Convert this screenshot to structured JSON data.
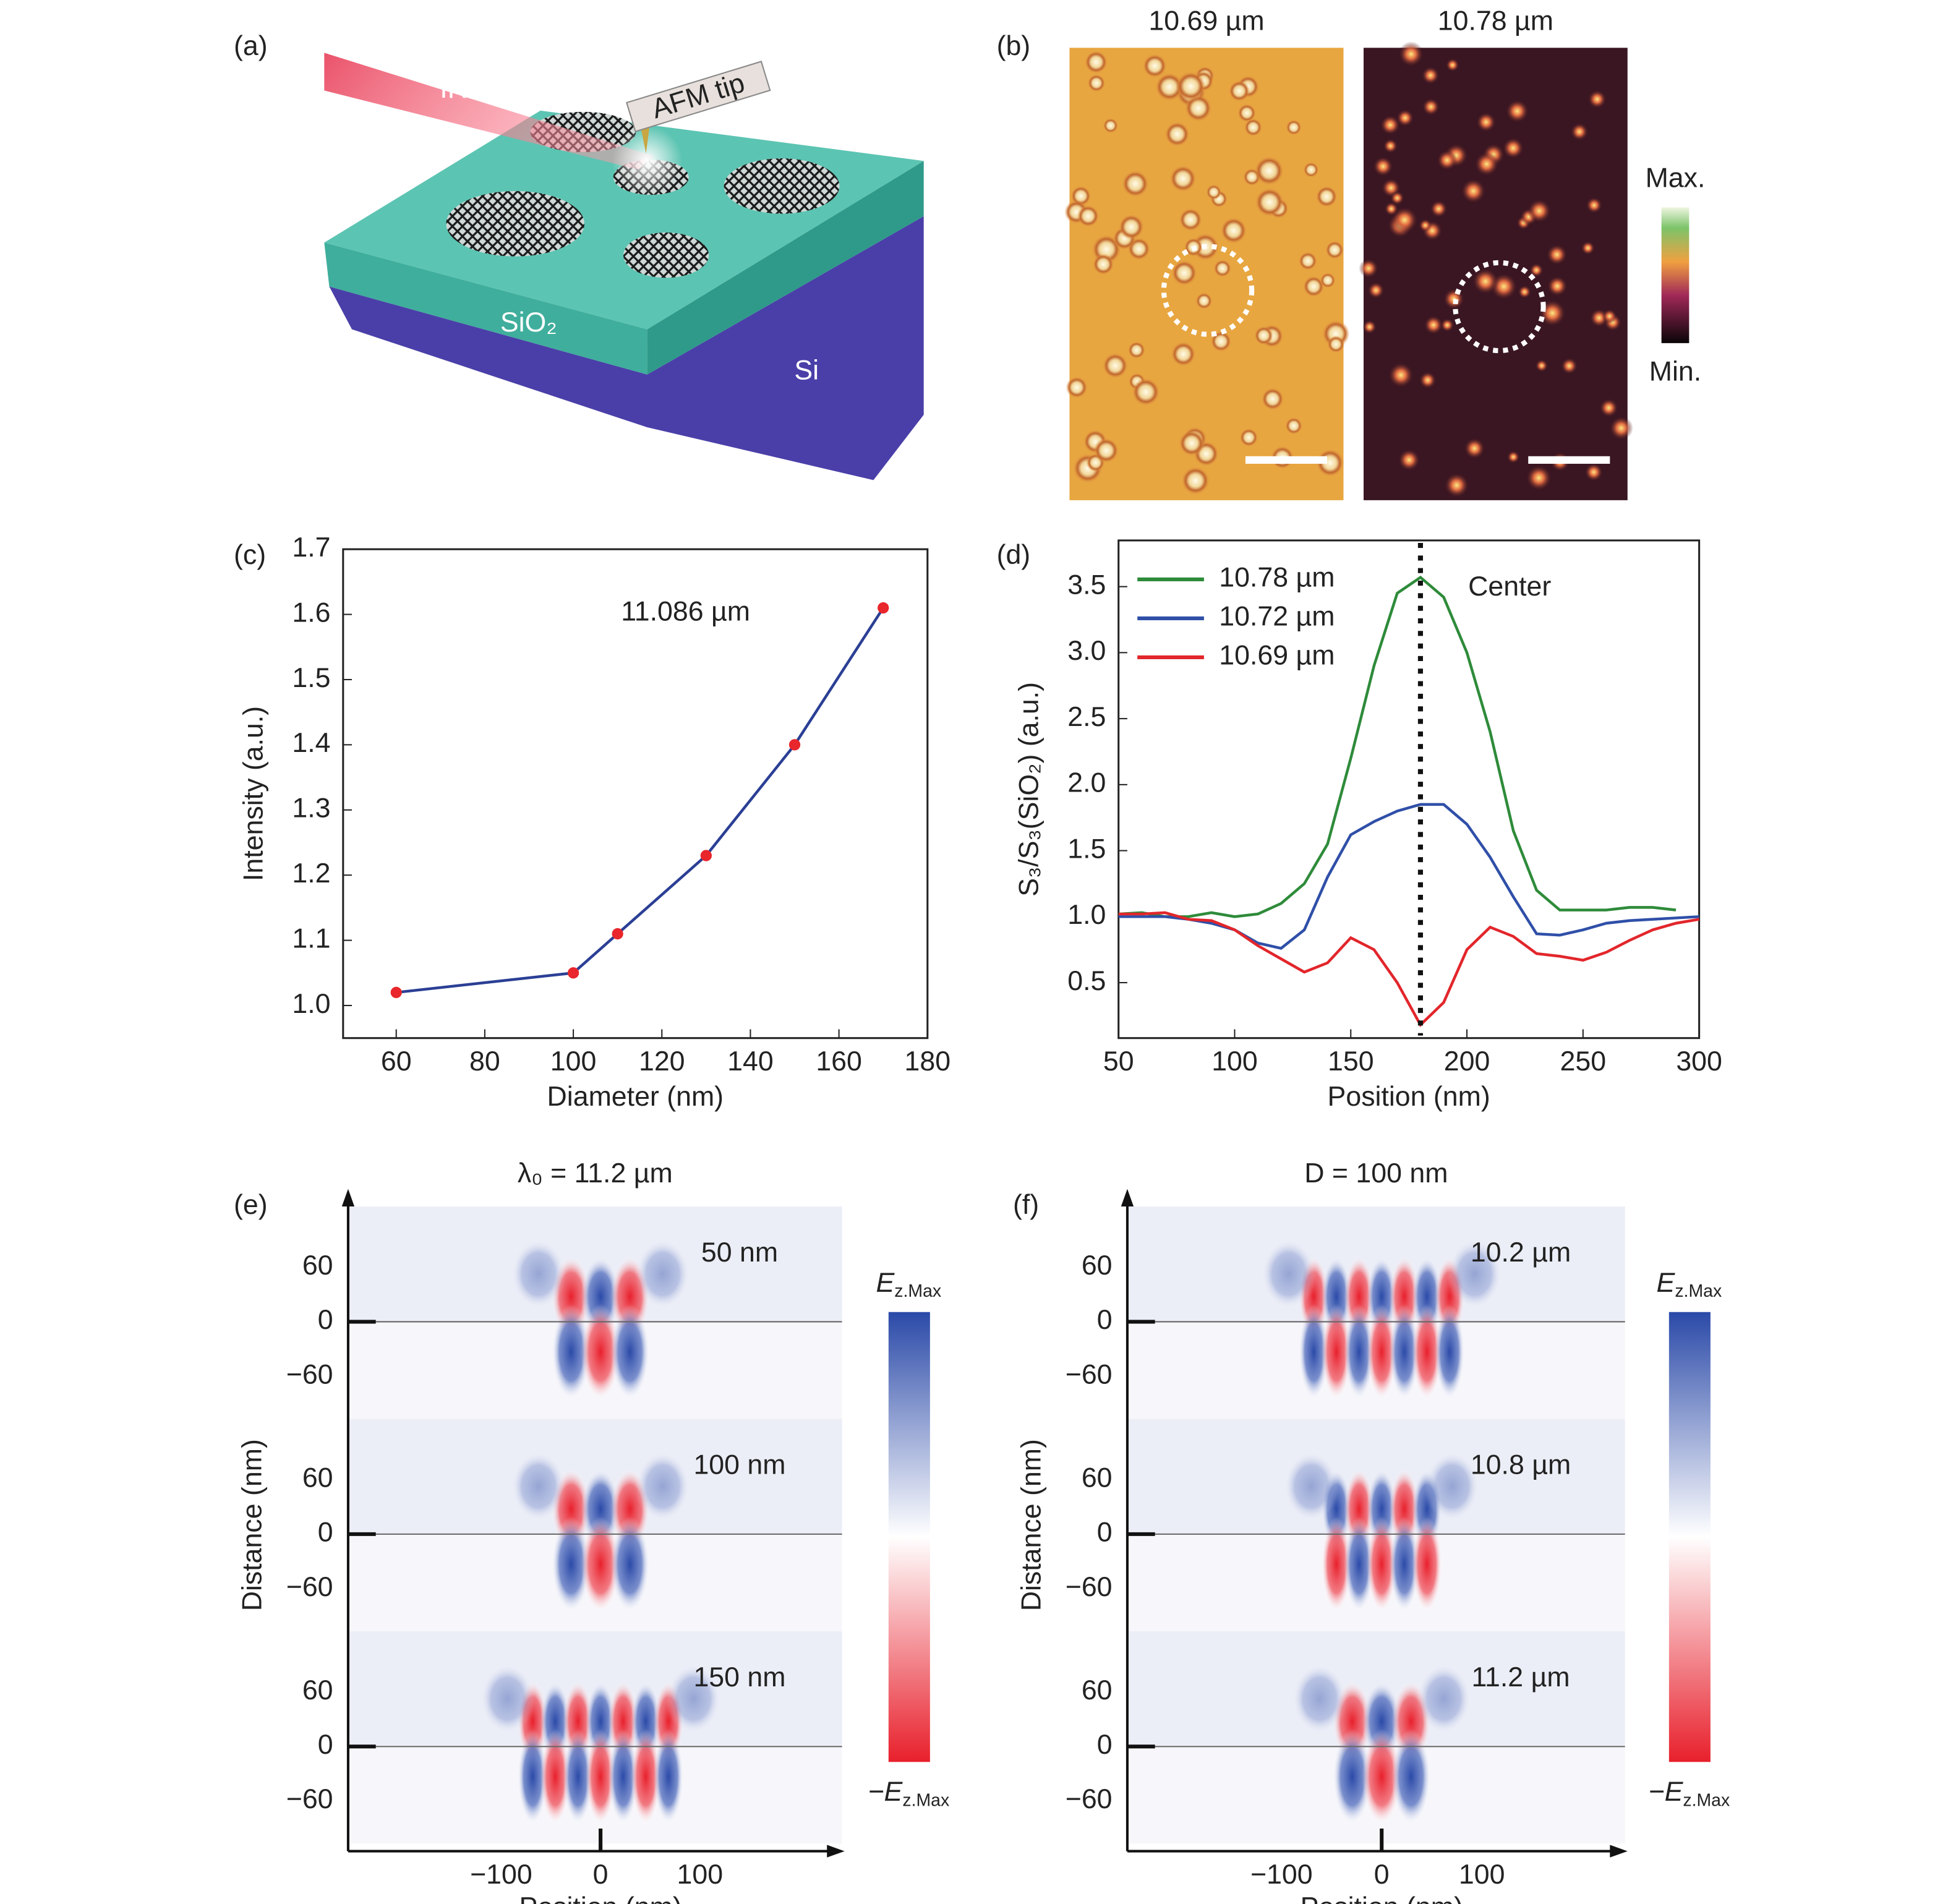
{
  "panel_labels": [
    "(a)",
    "(b)",
    "(c)",
    "(d)",
    "(e)",
    "(f)"
  ],
  "schematic": {
    "ir": "IR",
    "tip": "AFM tip",
    "sio2": "SiO₂",
    "si": "Si"
  },
  "afm": {
    "titles": [
      "10.69 µm",
      "10.78 µm"
    ],
    "colorbar_max": "Max.",
    "colorbar_min": "Min."
  },
  "chart_data": [
    {
      "type": "line",
      "xlabel": "Diameter (nm)",
      "ylabel": "Intensity (a.u.)",
      "annotation": "11.086 µm",
      "x": [
        60,
        100,
        110,
        130,
        150,
        170
      ],
      "values": [
        1.02,
        1.05,
        1.11,
        1.23,
        1.4,
        1.61
      ],
      "color": "#2b3f95",
      "marker_color": "#e8262b",
      "xlim": [
        48,
        180
      ],
      "ylim": [
        0.95,
        1.7
      ],
      "xticks": [
        60,
        80,
        100,
        120,
        140,
        160,
        180
      ],
      "yticks": [
        {
          "value": 1,
          "label": "1.0"
        },
        1.1,
        1.2,
        1.3,
        1.4,
        1.5,
        1.6,
        1.7
      ]
    },
    {
      "type": "line",
      "xlabel": "Position (nm)",
      "ylabel": "S₃/S₃(SiO₂) (a.u.)",
      "legend": "upper left",
      "center_line": 180,
      "center_label": "Center",
      "x": [
        50,
        60,
        70,
        80,
        90,
        100,
        110,
        120,
        130,
        140,
        150,
        160,
        170,
        180,
        190,
        200,
        210,
        220,
        230,
        240,
        250,
        260,
        270,
        280,
        290,
        300
      ],
      "series": [
        {
          "name": "10.78 µm",
          "color": "#2e8b3a",
          "values": [
            1.02,
            1.03,
            1.0,
            1.0,
            1.03,
            1.0,
            1.02,
            1.1,
            1.25,
            1.55,
            2.2,
            2.9,
            3.45,
            3.57,
            3.42,
            3.0,
            2.4,
            1.65,
            1.2,
            1.05,
            1.05,
            1.05,
            1.07,
            1.07,
            1.05,
            null
          ]
        },
        {
          "name": "10.72 µm",
          "color": "#2f4fa8",
          "values": [
            1.0,
            1.0,
            1.0,
            0.98,
            0.95,
            0.9,
            0.8,
            0.76,
            0.9,
            1.3,
            1.62,
            1.72,
            1.8,
            1.85,
            1.85,
            1.7,
            1.45,
            1.15,
            0.87,
            0.86,
            0.9,
            0.95,
            0.97,
            0.98,
            0.99,
            1.0
          ]
        },
        {
          "name": "10.69 µm",
          "color": "#e2262b",
          "values": [
            1.02,
            1.02,
            1.03,
            0.98,
            0.97,
            0.9,
            0.78,
            0.68,
            0.58,
            0.65,
            0.84,
            0.75,
            0.5,
            0.18,
            0.35,
            0.75,
            0.92,
            0.85,
            0.72,
            0.7,
            0.67,
            0.73,
            0.82,
            0.9,
            0.95,
            0.98
          ]
        }
      ],
      "xlim": [
        50,
        300
      ],
      "ylim": [
        0.08,
        3.85
      ],
      "xticks": [
        50,
        100,
        150,
        200,
        250,
        300
      ],
      "yticks": [
        0.5,
        {
          "value": 1,
          "label": "1.0"
        },
        1.5,
        {
          "value": 2,
          "label": "2.0"
        },
        2.5,
        {
          "value": 3,
          "label": "3.0"
        },
        3.5
      ]
    }
  ],
  "field_maps": [
    {
      "title": "λ₀ = 11.2 µm",
      "labels": [
        "50 nm",
        "100 nm",
        "150 nm"
      ],
      "xlabel": "Position (nm)",
      "ylabel": "Distance (nm)",
      "xlim": [
        -254,
        243
      ],
      "ylim": [
        -107,
        127
      ],
      "xticks": [
        {
          "value": -100,
          "label": "−100"
        },
        0,
        100
      ],
      "yticks": [
        60,
        0,
        {
          "value": -60,
          "label": "−60"
        }
      ],
      "colorbar": {
        "max": "E",
        "max_sub": "z.Max",
        "min": "−E",
        "min_sub": "z.Max"
      }
    },
    {
      "title": "D = 100 nm",
      "labels": [
        "10.2 µm",
        "10.8 µm",
        "11.2 µm"
      ],
      "xlabel": "Position (nm)",
      "ylabel": "Distance (nm)",
      "xlim": [
        -254,
        243
      ],
      "ylim": [
        -107,
        127
      ],
      "xticks": [
        {
          "value": -100,
          "label": "−100"
        },
        0,
        100
      ],
      "yticks": [
        60,
        0,
        {
          "value": -60,
          "label": "−60"
        }
      ],
      "colorbar": {
        "max": "E",
        "max_sub": "z.Max",
        "min": "−E",
        "min_sub": "z.Max"
      }
    }
  ]
}
